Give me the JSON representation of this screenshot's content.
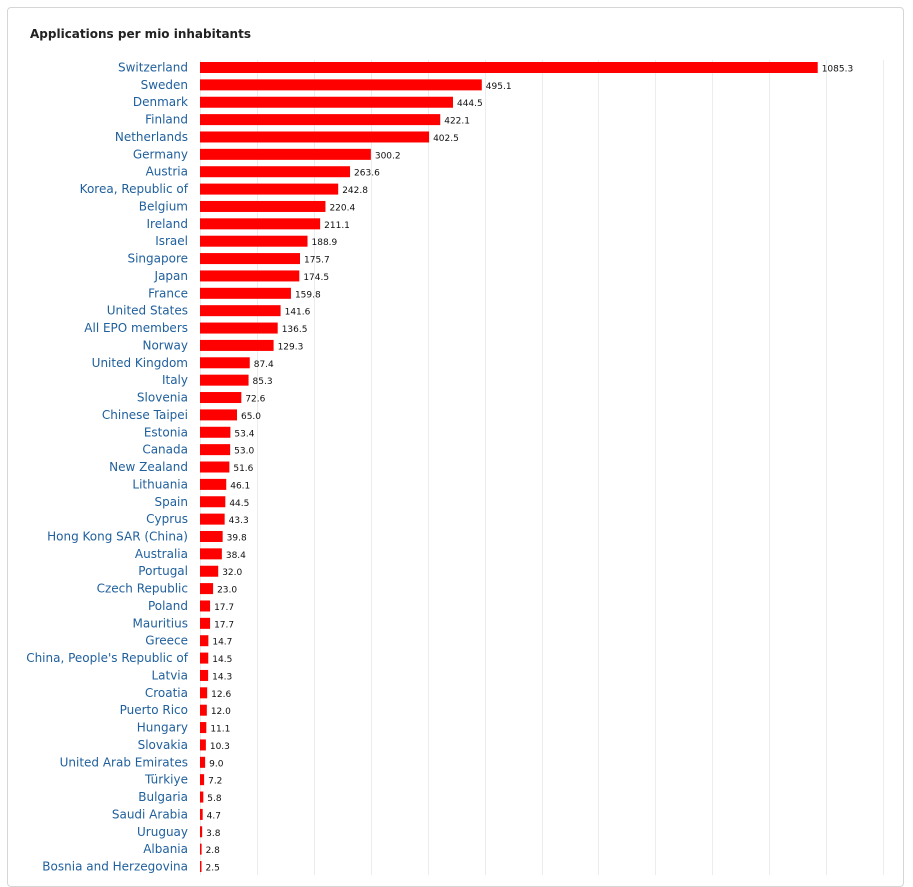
{
  "colors": {
    "bar": "#ff0000",
    "category_label": "#1f5f9c",
    "grid": "#ececec"
  },
  "chart_data": {
    "type": "bar",
    "orientation": "horizontal",
    "title": "Applications per mio inhabitants",
    "xlim": [
      0,
      1200
    ],
    "grid": true,
    "legend": "none",
    "categories": [
      "Switzerland",
      "Sweden",
      "Denmark",
      "Finland",
      "Netherlands",
      "Germany",
      "Austria",
      "Korea, Republic of",
      "Belgium",
      "Ireland",
      "Israel",
      "Singapore",
      "Japan",
      "France",
      "United States",
      "All EPO members",
      "Norway",
      "United Kingdom",
      "Italy",
      "Slovenia",
      "Chinese Taipei",
      "Estonia",
      "Canada",
      "New Zealand",
      "Lithuania",
      "Spain",
      "Cyprus",
      "Hong Kong SAR (China)",
      "Australia",
      "Portugal",
      "Czech Republic",
      "Poland",
      "Mauritius",
      "Greece",
      "China, People's Republic of",
      "Latvia",
      "Croatia",
      "Puerto Rico",
      "Hungary",
      "Slovakia",
      "United Arab Emirates",
      "Türkiye",
      "Bulgaria",
      "Saudi Arabia",
      "Uruguay",
      "Albania",
      "Bosnia and Herzegovina"
    ],
    "values": [
      1085.3,
      495.1,
      444.5,
      422.1,
      402.5,
      300.2,
      263.6,
      242.8,
      220.4,
      211.1,
      188.9,
      175.7,
      174.5,
      159.8,
      141.6,
      136.5,
      129.3,
      87.4,
      85.3,
      72.6,
      65.0,
      53.4,
      53.0,
      51.6,
      46.1,
      44.5,
      43.3,
      39.8,
      38.4,
      32.0,
      23.0,
      17.7,
      17.7,
      14.7,
      14.5,
      14.3,
      12.6,
      12.0,
      11.1,
      10.3,
      9.0,
      7.2,
      5.8,
      4.7,
      3.8,
      2.8,
      2.5
    ],
    "value_labels": [
      "1085.3",
      "495.1",
      "444.5",
      "422.1",
      "402.5",
      "300.2",
      "263.6",
      "242.8",
      "220.4",
      "211.1",
      "188.9",
      "175.7",
      "174.5",
      "159.8",
      "141.6",
      "136.5",
      "129.3",
      "87.4",
      "85.3",
      "72.6",
      "65.0",
      "53.4",
      "53.0",
      "51.6",
      "46.1",
      "44.5",
      "43.3",
      "39.8",
      "38.4",
      "32.0",
      "23.0",
      "17.7",
      "17.7",
      "14.7",
      "14.5",
      "14.3",
      "12.6",
      "12.0",
      "11.1",
      "10.3",
      "9.0",
      "7.2",
      "5.8",
      "4.7",
      "3.8",
      "2.8",
      "2.5"
    ]
  }
}
